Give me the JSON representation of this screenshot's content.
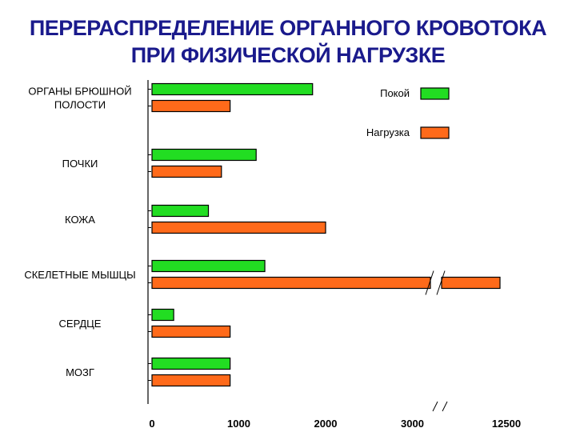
{
  "title_lines": [
    "ПЕРЕРАСПРЕДЕЛЕНИЕ  ОРГАННОГО  КРОВОТОКА",
    "ПРИ  ФИЗИЧЕСКОЙ  НАГРУЗКЕ"
  ],
  "colors": {
    "rest": "#22dd22",
    "load": "#ff6a1a",
    "title": "#1a1a8c"
  },
  "chart_data": {
    "type": "bar",
    "orientation": "horizontal",
    "title": "ПЕРЕРАСПРЕДЕЛЕНИЕ  ОРГАННОГО  КРОВОТОКА ПРИ  ФИЗИЧЕСКОЙ  НАГРУЗКЕ",
    "categories": [
      [
        "ОРГАНЫ БРЮШНОЙ",
        "ПОЛОСТИ"
      ],
      [
        "ПОЧКИ"
      ],
      [
        "КОЖА"
      ],
      [
        "СКЕЛЕТНЫЕ МЫШЦЫ"
      ],
      [
        "СЕРДЦЕ"
      ],
      [
        "МОЗГ"
      ]
    ],
    "series": [
      {
        "name": "Покой",
        "color": "#22dd22",
        "values": [
          1850,
          1200,
          650,
          1300,
          250,
          900
        ]
      },
      {
        "name": "Нагрузка",
        "color": "#ff6a1a",
        "values": [
          900,
          800,
          2000,
          12500,
          900,
          900
        ]
      }
    ],
    "x_ticks": [
      "0",
      "1000",
      "2000",
      "3000",
      "12500"
    ],
    "axis_break": {
      "from": 3000,
      "to": 12500
    },
    "xlim": [
      0,
      12500
    ],
    "legend_position": "top-right",
    "grid": false
  }
}
